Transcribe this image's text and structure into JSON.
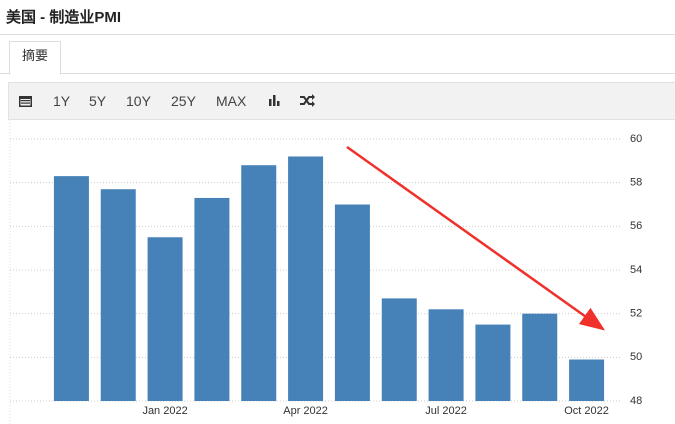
{
  "header": {
    "title": "美国 - 制造业PMI"
  },
  "tabs": [
    "摘要"
  ],
  "toolbar": [
    "1Y",
    "5Y",
    "10Y",
    "25Y",
    "MAX"
  ],
  "chart_data": {
    "type": "bar",
    "categories": [
      null,
      null,
      "Jan 2022",
      null,
      null,
      "Apr 2022",
      null,
      null,
      "Jul 2022",
      null,
      null,
      "Oct 2022"
    ],
    "values": [
      58.3,
      57.7,
      55.5,
      57.3,
      58.8,
      59.2,
      57.0,
      52.7,
      52.2,
      51.5,
      52.0,
      49.9
    ],
    "color": "#4682b8",
    "ylim": [
      48,
      60
    ],
    "yticks": [
      48,
      50,
      52,
      54,
      56,
      58,
      60
    ],
    "grid": true
  }
}
